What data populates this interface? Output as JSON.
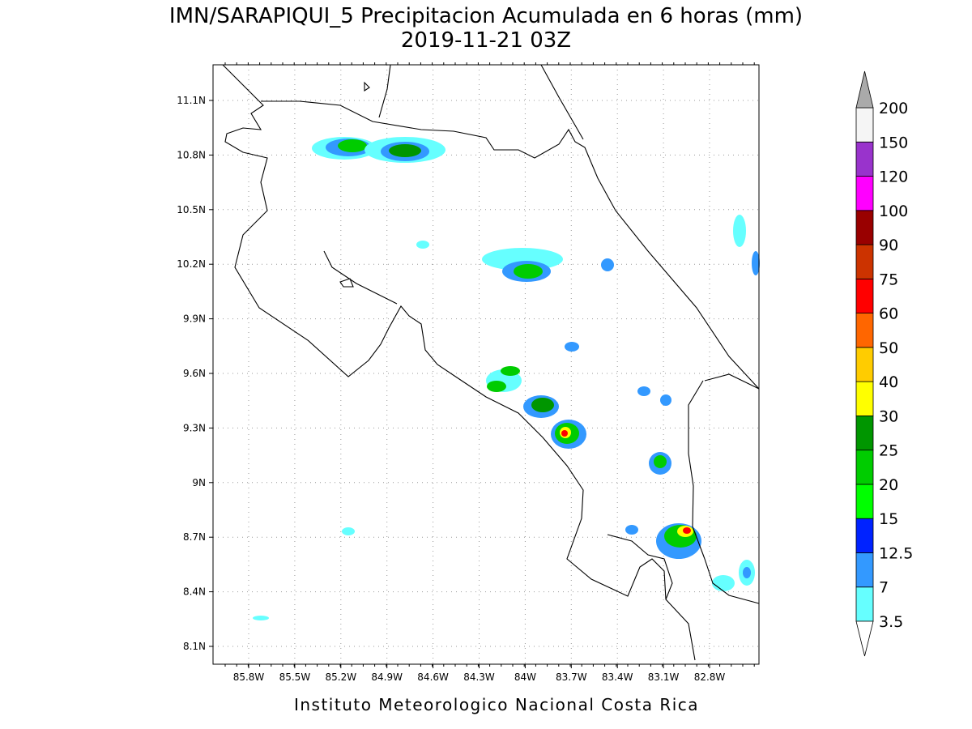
{
  "title": "IMN/SARAPIQUI_5 Precipitacion Acumulada en 6 horas (mm)",
  "subtitle": "2019-11-21 03Z",
  "footer": "Instituto Meteorologico Nacional Costa Rica",
  "map": {
    "lon_labels": [
      "85.8W",
      "85.5W",
      "85.2W",
      "84.9W",
      "84.6W",
      "84.3W",
      "84W",
      "83.7W",
      "83.4W",
      "83.1W",
      "82.8W"
    ],
    "lat_labels": [
      "11.1N",
      "10.8N",
      "10.5N",
      "10.2N",
      "9.9N",
      "9.6N",
      "9.3N",
      "9N",
      "8.7N",
      "8.4N",
      "8.1N"
    ]
  },
  "colorbar": {
    "labels": [
      "3.5",
      "7",
      "12.5",
      "15",
      "20",
      "25",
      "30",
      "40",
      "50",
      "60",
      "75",
      "90",
      "100",
      "120",
      "150",
      "200"
    ],
    "colors": [
      "#66ffff",
      "#3399ff",
      "#0022ff",
      "#00ff00",
      "#00cc00",
      "#009600",
      "#ffff00",
      "#ffcc00",
      "#ff6600",
      "#ff0000",
      "#cc3300",
      "#990000",
      "#ff00ff",
      "#9933cc",
      "#f5f5f5"
    ],
    "over_color": "#aaaaaa",
    "under_color": "#ffffff"
  }
}
